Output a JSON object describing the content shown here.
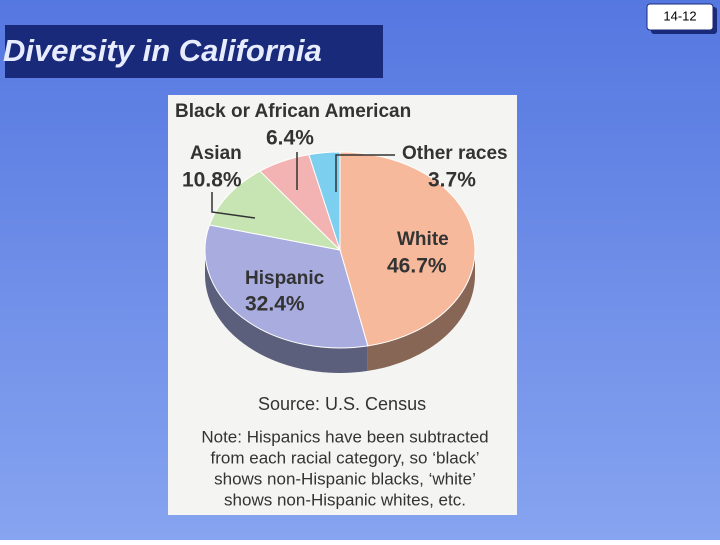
{
  "slide": {
    "title": "Diversity in California",
    "page_number": "14-12"
  },
  "chart_data": {
    "type": "pie",
    "categories": [
      "White",
      "Hispanic",
      "Asian",
      "Black or African American",
      "Other races"
    ],
    "values": [
      46.7,
      32.4,
      10.8,
      6.4,
      3.7
    ],
    "value_labels": [
      "46.7%",
      "32.4%",
      "10.8%",
      "6.4%",
      "3.7%"
    ],
    "colors": [
      "#f6b99c",
      "#a8acdf",
      "#c6e5b2",
      "#f3b3b3",
      "#7dcff0"
    ],
    "source": "Source: U.S. Census",
    "note_lines": [
      "Note: Hispanics have been subtracted",
      "from each racial category, so ‘black’",
      "shows non-Hispanic blacks, ‘white’",
      "shows non-Hispanic whites, etc."
    ]
  }
}
